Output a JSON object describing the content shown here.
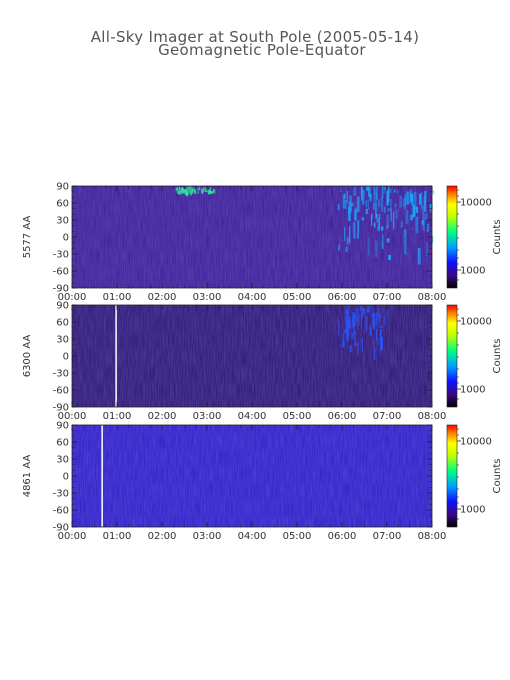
{
  "title_line1": "All-Sky Imager at South Pole (2005-05-14)",
  "title_line2": "Geomagnetic Pole-Equator",
  "chart_data": [
    {
      "type": "heatmap",
      "ylabel": "5577 AA",
      "x_ticks": [
        "00:00",
        "01:00",
        "02:00",
        "03:00",
        "04:00",
        "05:00",
        "06:00",
        "07:00",
        "08:00"
      ],
      "y_ticks": [
        90,
        60,
        30,
        0,
        -30,
        -60,
        -90
      ],
      "ylim": [
        -90,
        90
      ],
      "colorbar": {
        "label": "Counts",
        "ticks": [
          "10000",
          "1000"
        ]
      },
      "base_color": "#3a1b93",
      "highlights": [
        {
          "t0": 2.3,
          "t1": 3.2,
          "lat0": 80,
          "lat1": 90,
          "level": "green"
        },
        {
          "t0": 5.9,
          "t1": 8.0,
          "lat0": -40,
          "lat1": 90,
          "level": "cyan"
        }
      ],
      "white_line_time": null
    },
    {
      "type": "heatmap",
      "ylabel": "6300 AA",
      "x_ticks": [
        "00:00",
        "01:00",
        "02:00",
        "03:00",
        "04:00",
        "05:00",
        "06:00",
        "07:00",
        "08:00"
      ],
      "y_ticks": [
        90,
        60,
        30,
        0,
        -30,
        -60,
        -90
      ],
      "ylim": [
        -90,
        90
      ],
      "colorbar": {
        "label": "Counts",
        "ticks": [
          "10000",
          "1000"
        ]
      },
      "base_color": "#2a1470",
      "highlights": [
        {
          "t0": 5.9,
          "t1": 7.0,
          "lat0": -20,
          "lat1": 90,
          "level": "blue"
        }
      ],
      "white_line_time": 0.98
    },
    {
      "type": "heatmap",
      "ylabel": "4861 AA",
      "x_ticks": [
        "00:00",
        "01:00",
        "02:00",
        "03:00",
        "04:00",
        "05:00",
        "06:00",
        "07:00",
        "08:00"
      ],
      "y_ticks": [
        90,
        60,
        30,
        0,
        -30,
        -60,
        -90
      ],
      "ylim": [
        -90,
        90
      ],
      "colorbar": {
        "label": "Counts",
        "ticks": [
          "10000",
          "1000"
        ]
      },
      "base_color": "#2c1cc8",
      "highlights": [],
      "white_line_time": 0.67
    }
  ]
}
